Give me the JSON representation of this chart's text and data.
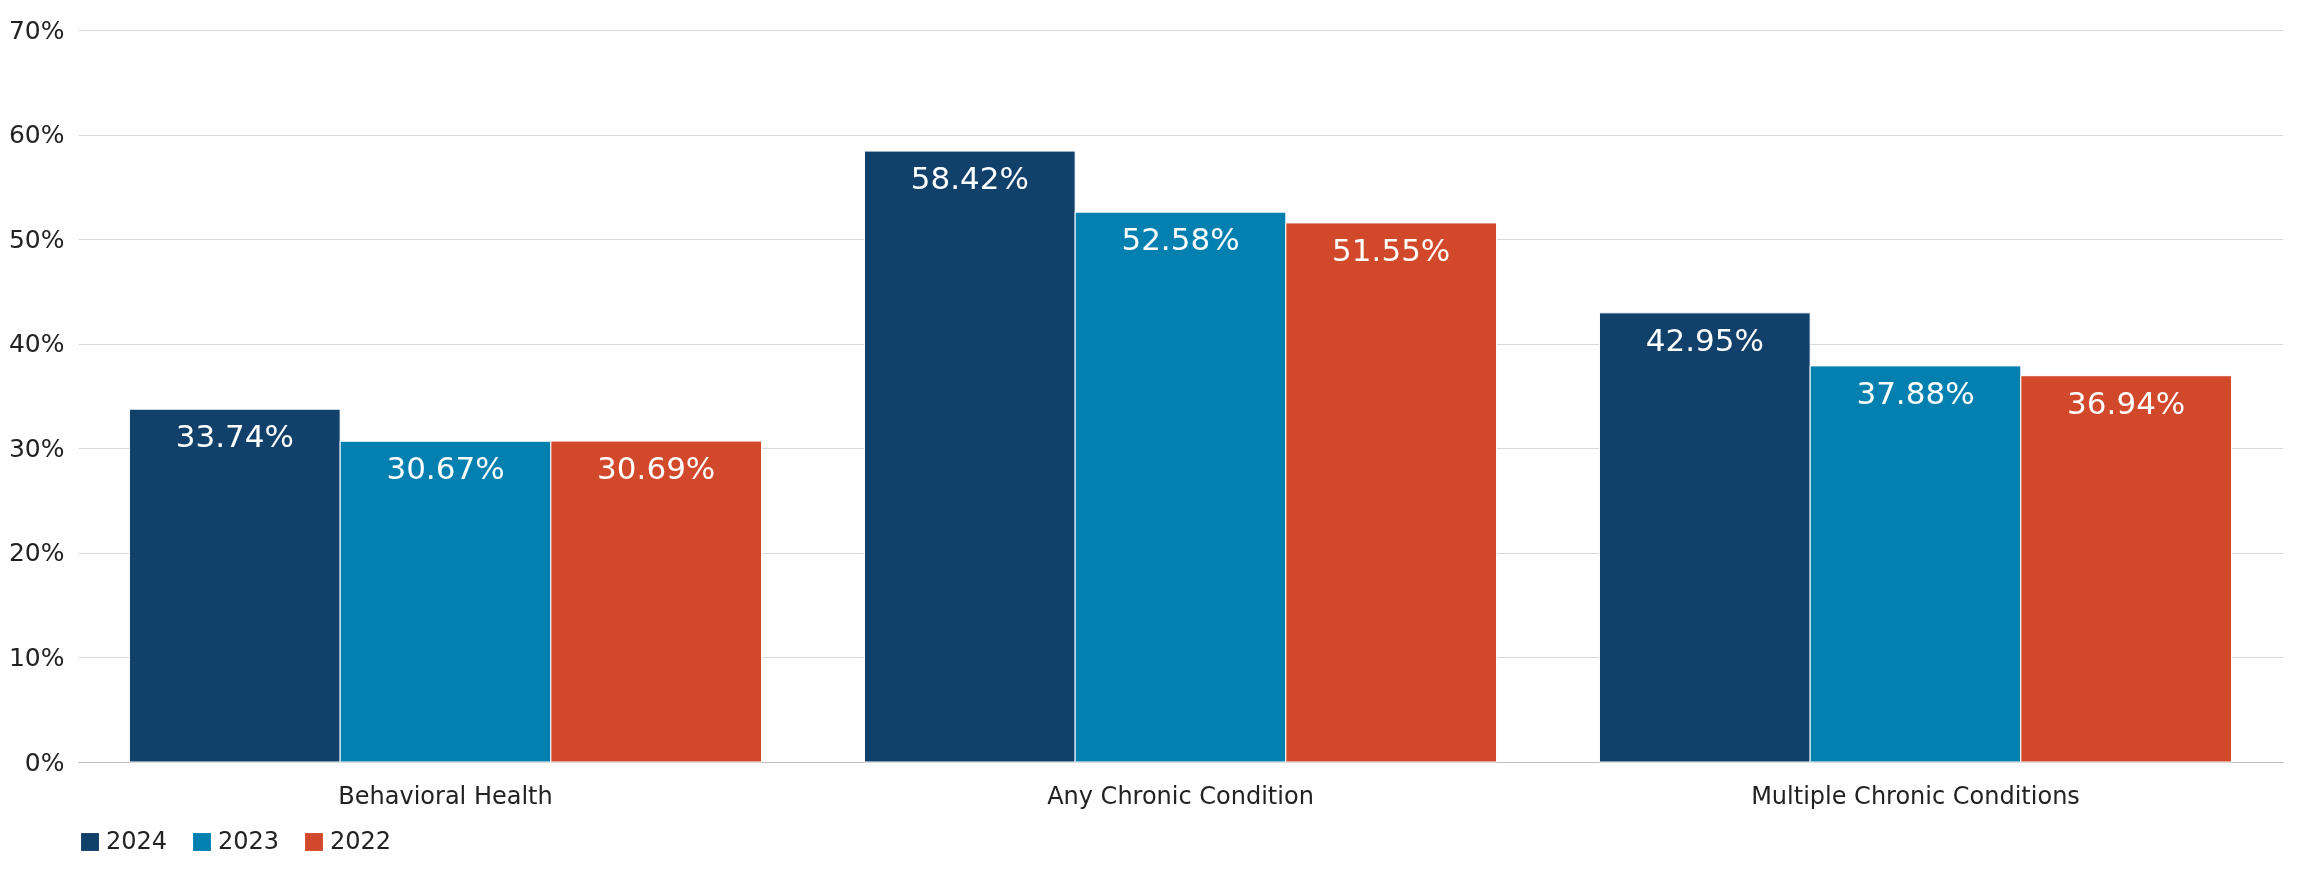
{
  "chart_data": {
    "type": "bar",
    "categories": [
      "Behavioral Health",
      "Any Chronic Condition",
      "Multiple Chronic Conditions"
    ],
    "series": [
      {
        "name": "2024",
        "color": "#11406b",
        "values": [
          33.74,
          58.42,
          42.95
        ],
        "value_labels": [
          "33.74%",
          "58.42%",
          "42.95%"
        ]
      },
      {
        "name": "2023",
        "color": "#0380b0",
        "values": [
          30.67,
          52.58,
          37.88
        ],
        "value_labels": [
          "30.67%",
          "52.58%",
          "37.88%"
        ]
      },
      {
        "name": "2022",
        "color": "#d2482a",
        "values": [
          30.69,
          51.55,
          36.94
        ],
        "value_labels": [
          "30.69%",
          "51.55%",
          "36.94%"
        ]
      }
    ],
    "ylim": [
      0,
      70
    ],
    "yticks": [
      {
        "value": 0,
        "label": "0%"
      },
      {
        "value": 10,
        "label": "10%"
      },
      {
        "value": 20,
        "label": "20%"
      },
      {
        "value": 30,
        "label": "30%"
      },
      {
        "value": 40,
        "label": "40%"
      },
      {
        "value": 50,
        "label": "50%"
      },
      {
        "value": 60,
        "label": "60%"
      },
      {
        "value": 70,
        "label": "70%"
      }
    ],
    "grid": "y",
    "legend": "bottom"
  }
}
